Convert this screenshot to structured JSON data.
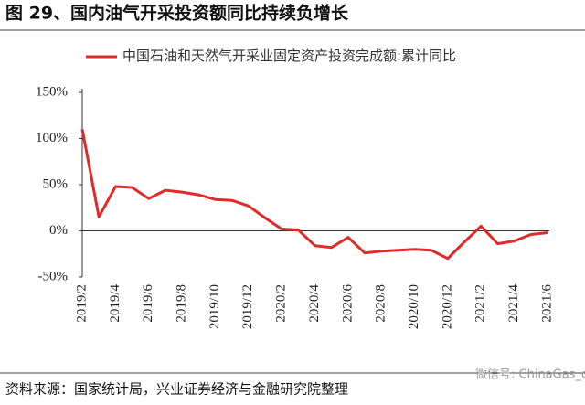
{
  "chart_data": {
    "type": "line",
    "title": "图 29、国内油气开采投资额同比持续负增长",
    "source": "资料来源：国家统计局，兴业证券经济与金融研究院整理",
    "watermark": "微信号: ChinaGas_org",
    "categories": [
      "2019/2",
      null,
      "2019/4",
      null,
      "2019/6",
      null,
      "2019/8",
      null,
      "2019/10",
      null,
      "2019/12",
      null,
      "2020/2",
      null,
      "2020/4",
      null,
      "2020/6",
      null,
      "2020/8",
      null,
      "2020/10",
      null,
      "2020/12",
      null,
      "2021/2",
      null,
      "2021/4",
      null,
      "2021/6"
    ],
    "series": [
      {
        "name": "中国石油和天然气开采业固定资产投资完成额:累计同比",
        "color": "#e02b2b",
        "values": [
          110,
          15,
          48,
          47,
          35,
          44,
          42,
          39,
          34,
          33,
          27,
          14,
          2,
          1,
          -16,
          -18,
          -7,
          -24,
          -22,
          -21,
          -20,
          -21,
          -30,
          -12,
          5,
          -14,
          -11,
          -4,
          -2
        ]
      }
    ],
    "ylim": [
      -50,
      150
    ],
    "yticks": [
      {
        "value": -50,
        "label": "-50%"
      },
      {
        "value": 0,
        "label": "0%"
      },
      {
        "value": 50,
        "label": "50%"
      },
      {
        "value": 100,
        "label": "100%"
      },
      {
        "value": 150,
        "label": "150%"
      }
    ]
  }
}
